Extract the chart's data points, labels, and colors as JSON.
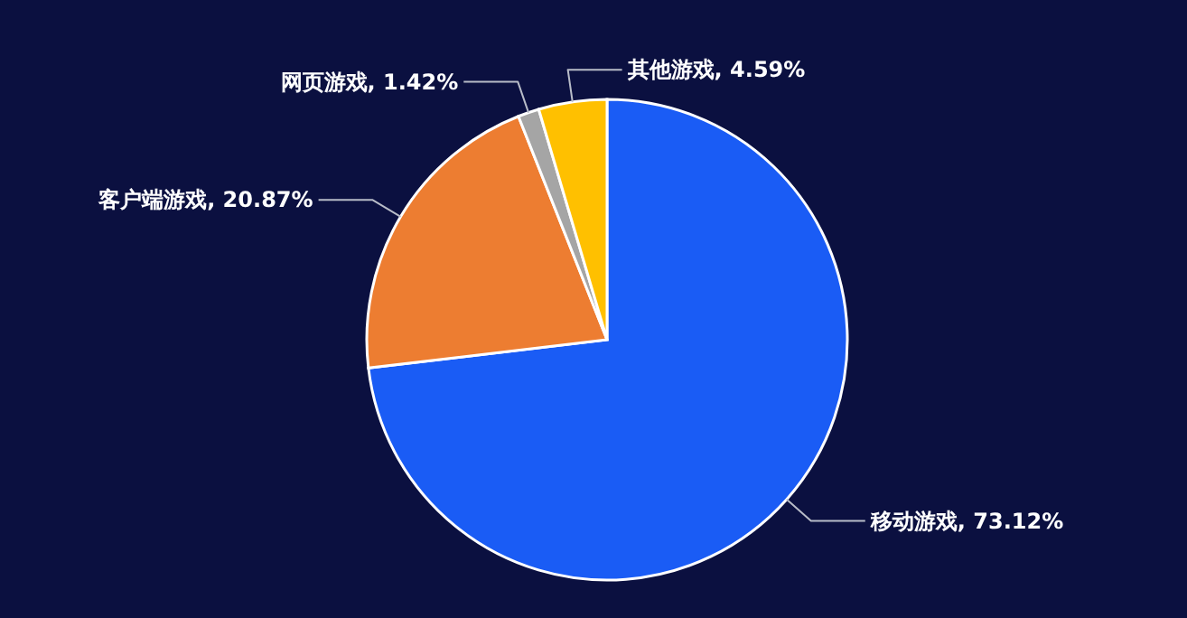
{
  "chart_data": {
    "type": "pie",
    "categories": [
      "移动游戏",
      "客户端游戏",
      "网页游戏",
      "其他游戏"
    ],
    "values": [
      73.12,
      20.87,
      1.42,
      4.59
    ],
    "colors": [
      "#1a5cf5",
      "#ed7d31",
      "#a5a5a5",
      "#ffc000"
    ],
    "value_labels": [
      "73.12%",
      "20.87%",
      "1.42%",
      "4.59%"
    ]
  }
}
